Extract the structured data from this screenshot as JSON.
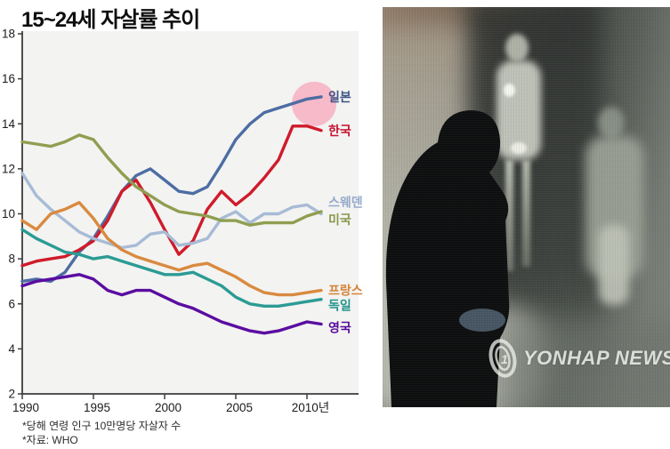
{
  "page": {
    "title": "15~24세 자살률 추이"
  },
  "chart": {
    "footnotes": [
      "*당해 연령 인구 10만명당 자살자 수",
      "*자료: WHO"
    ],
    "plot_bg": "#f3f3f1",
    "axis_color": "#3d3d3d",
    "highlight_circle_color": "#f5b6c6"
  },
  "chart_data": {
    "type": "line",
    "title": "15~24세 자살률 추이",
    "xlabel": "",
    "ylabel": "",
    "x": [
      1990,
      1991,
      1992,
      1993,
      1994,
      1995,
      1996,
      1997,
      1998,
      1999,
      2000,
      2001,
      2002,
      2003,
      2004,
      2005,
      2006,
      2007,
      2008,
      2009,
      2010,
      2011
    ],
    "x_ticks": [
      1990,
      1995,
      2000,
      2005,
      2010
    ],
    "x_tick_labels": [
      "1990",
      "1995",
      "2000",
      "2005",
      "2010년"
    ],
    "ylim": [
      2,
      18
    ],
    "y_ticks": [
      2,
      4,
      6,
      8,
      10,
      12,
      14,
      16,
      18
    ],
    "grid": false,
    "legend_position": "right-end-of-line",
    "series": [
      {
        "id": "japan",
        "name": "일본",
        "color": "#4d6da3",
        "label_color": "#3d5486",
        "label_dy": 0,
        "highlighted": true,
        "values": [
          7.0,
          7.1,
          7.0,
          7.4,
          8.3,
          8.9,
          9.9,
          11.0,
          11.7,
          12.0,
          11.5,
          11.0,
          10.9,
          11.2,
          12.2,
          13.3,
          14.0,
          14.5,
          14.7,
          14.9,
          15.1,
          15.2
        ]
      },
      {
        "id": "korea",
        "name": "한국",
        "color": "#cf1b2b",
        "label_color": "#c8102e",
        "label_dy": 0,
        "highlighted": false,
        "values": [
          7.7,
          7.9,
          8.0,
          8.1,
          8.4,
          8.8,
          9.7,
          11.0,
          11.5,
          10.5,
          9.3,
          8.2,
          8.8,
          10.2,
          11.0,
          10.4,
          10.9,
          11.6,
          12.4,
          13.9,
          13.9,
          13.7
        ]
      },
      {
        "id": "sweden",
        "name": "스웨덴",
        "color": "#a7bbd6",
        "label_color": "#94aacb",
        "label_dy": -13,
        "highlighted": false,
        "values": [
          11.8,
          10.8,
          10.2,
          9.7,
          9.2,
          8.9,
          8.7,
          8.5,
          8.6,
          9.1,
          9.2,
          8.6,
          8.7,
          8.9,
          9.8,
          10.1,
          9.6,
          10.0,
          10.0,
          10.3,
          10.4,
          10.0
        ]
      },
      {
        "id": "usa",
        "name": "미국",
        "color": "#8f9e50",
        "label_color": "#87964a",
        "label_dy": 9,
        "highlighted": false,
        "values": [
          13.2,
          13.1,
          13.0,
          13.2,
          13.5,
          13.3,
          12.5,
          11.8,
          11.2,
          10.8,
          10.4,
          10.1,
          10.0,
          9.9,
          9.7,
          9.7,
          9.5,
          9.6,
          9.6,
          9.6,
          9.9,
          10.1
        ]
      },
      {
        "id": "france",
        "name": "프랑스",
        "color": "#d98a40",
        "label_color": "#d5833a",
        "label_dy": 0,
        "highlighted": false,
        "values": [
          9.7,
          9.3,
          10.0,
          10.2,
          10.5,
          9.8,
          8.9,
          8.4,
          8.1,
          7.9,
          7.7,
          7.5,
          7.7,
          7.8,
          7.5,
          7.2,
          6.8,
          6.5,
          6.4,
          6.4,
          6.5,
          6.6
        ]
      },
      {
        "id": "germany",
        "name": "독일",
        "color": "#2b9b94",
        "label_color": "#23948d",
        "label_dy": 7,
        "highlighted": false,
        "values": [
          9.3,
          8.9,
          8.6,
          8.3,
          8.2,
          8.0,
          8.1,
          7.9,
          7.7,
          7.5,
          7.3,
          7.3,
          7.4,
          7.1,
          6.8,
          6.3,
          6.0,
          5.9,
          5.9,
          6.0,
          6.1,
          6.2
        ]
      },
      {
        "id": "uk",
        "name": "영국",
        "color": "#5a0da1",
        "label_color": "#55099b",
        "label_dy": 4,
        "highlighted": false,
        "values": [
          6.8,
          7.0,
          7.1,
          7.2,
          7.3,
          7.1,
          6.6,
          6.4,
          6.6,
          6.6,
          6.3,
          6.0,
          5.8,
          5.5,
          5.2,
          5.0,
          4.8,
          4.7,
          4.8,
          5.0,
          5.2,
          5.1
        ]
      }
    ]
  },
  "photo": {
    "watermark": "YONHAP NEWS",
    "watermark_logo_icon": "yonhap-swirl-logo"
  }
}
